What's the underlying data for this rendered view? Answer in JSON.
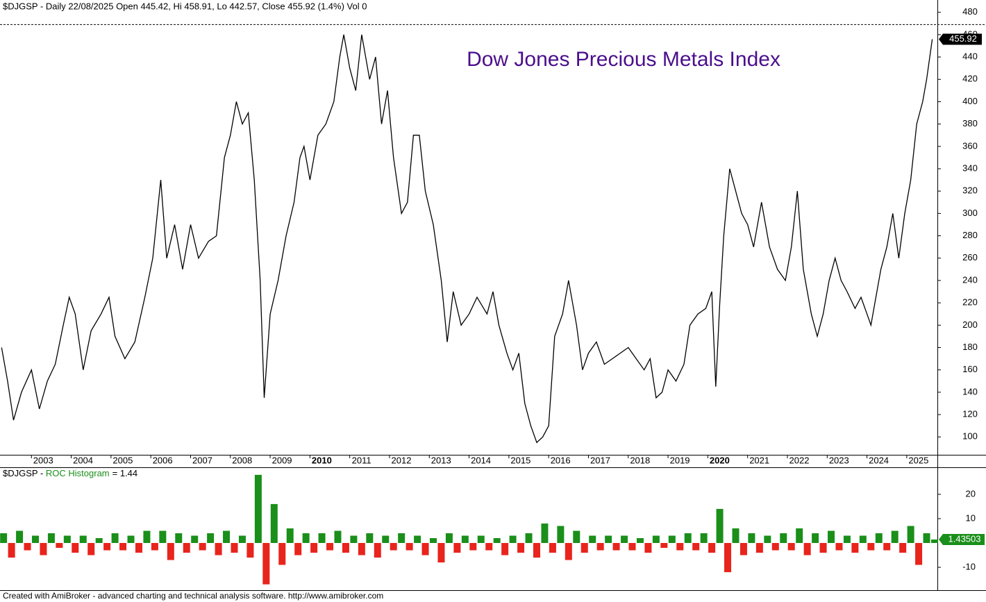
{
  "chart_data": [
    {
      "type": "line",
      "header": "$DJGSP - Daily 22/08/2025 Open 445.42, Hi 458.91, Lo 442.57, Close 455.92 (1.4%) Vol 0",
      "title": "Dow Jones Precious Metals Index",
      "title_color": "#4b0f8c",
      "color": "#000000",
      "x": [
        2002.25,
        2002.4,
        2002.55,
        2002.75,
        2003.0,
        2003.2,
        2003.4,
        2003.6,
        2003.8,
        2003.95,
        2004.1,
        2004.3,
        2004.5,
        2004.75,
        2004.95,
        2005.1,
        2005.35,
        2005.6,
        2005.85,
        2006.05,
        2006.25,
        2006.4,
        2006.6,
        2006.8,
        2007.0,
        2007.2,
        2007.45,
        2007.65,
        2007.85,
        2008.0,
        2008.15,
        2008.3,
        2008.45,
        2008.6,
        2008.75,
        2008.85,
        2009.0,
        2009.2,
        2009.4,
        2009.6,
        2009.75,
        2009.85,
        2010.0,
        2010.2,
        2010.4,
        2010.6,
        2010.75,
        2010.85,
        2011.0,
        2011.15,
        2011.3,
        2011.5,
        2011.65,
        2011.8,
        2011.95,
        2012.1,
        2012.3,
        2012.45,
        2012.6,
        2012.75,
        2012.9,
        2013.1,
        2013.3,
        2013.45,
        2013.6,
        2013.8,
        2014.0,
        2014.2,
        2014.45,
        2014.6,
        2014.75,
        2014.95,
        2015.1,
        2015.25,
        2015.4,
        2015.55,
        2015.7,
        2015.85,
        2016.0,
        2016.15,
        2016.35,
        2016.5,
        2016.7,
        2016.85,
        2017.0,
        2017.2,
        2017.4,
        2017.6,
        2017.8,
        2018.0,
        2018.2,
        2018.4,
        2018.55,
        2018.7,
        2018.85,
        2019.0,
        2019.2,
        2019.4,
        2019.55,
        2019.75,
        2019.95,
        2020.1,
        2020.2,
        2020.3,
        2020.4,
        2020.55,
        2020.7,
        2020.85,
        2021.0,
        2021.15,
        2021.35,
        2021.55,
        2021.75,
        2021.95,
        2022.1,
        2022.25,
        2022.4,
        2022.6,
        2022.75,
        2022.9,
        2023.05,
        2023.2,
        2023.35,
        2023.5,
        2023.7,
        2023.85,
        2024.0,
        2024.1,
        2024.2,
        2024.35,
        2024.5,
        2024.65,
        2024.8,
        2024.95,
        2025.1,
        2025.25,
        2025.4,
        2025.5,
        2025.64
      ],
      "values": [
        180,
        150,
        115,
        140,
        160,
        125,
        150,
        165,
        200,
        225,
        210,
        160,
        195,
        210,
        225,
        190,
        170,
        185,
        225,
        260,
        330,
        260,
        290,
        250,
        290,
        260,
        275,
        280,
        350,
        370,
        400,
        380,
        390,
        330,
        240,
        135,
        210,
        240,
        280,
        310,
        350,
        360,
        330,
        370,
        380,
        400,
        440,
        460,
        430,
        410,
        460,
        420,
        440,
        380,
        410,
        350,
        300,
        310,
        370,
        370,
        320,
        290,
        240,
        185,
        230,
        200,
        210,
        225,
        210,
        230,
        200,
        175,
        160,
        175,
        130,
        110,
        95,
        100,
        110,
        190,
        210,
        240,
        200,
        160,
        175,
        185,
        165,
        170,
        175,
        180,
        170,
        160,
        170,
        135,
        140,
        160,
        150,
        165,
        200,
        210,
        215,
        230,
        145,
        220,
        280,
        340,
        320,
        300,
        290,
        270,
        310,
        270,
        250,
        240,
        270,
        320,
        250,
        210,
        190,
        210,
        240,
        260,
        240,
        230,
        215,
        225,
        210,
        200,
        220,
        250,
        270,
        300,
        260,
        300,
        330,
        380,
        400,
        420,
        455.92
      ],
      "high_line": 469,
      "xlim": [
        2002.21,
        2025.77
      ],
      "xticks": [
        2003,
        2004,
        2005,
        2006,
        2007,
        2008,
        2009,
        2010,
        2011,
        2012,
        2013,
        2014,
        2015,
        2016,
        2017,
        2018,
        2019,
        2020,
        2021,
        2022,
        2023,
        2024,
        2025
      ],
      "bold_xticks": [
        2010,
        2020
      ],
      "ylim": [
        84,
        491
      ],
      "yticks": [
        100,
        120,
        140,
        160,
        180,
        200,
        220,
        240,
        260,
        280,
        300,
        320,
        340,
        360,
        380,
        400,
        420,
        440,
        460,
        480
      ]
    },
    {
      "type": "histogram",
      "header_prefix": "$DJGSP - ",
      "indicator_name": "ROC Histogram",
      "header_value": "= 1.44",
      "positive_color": "#1a8f1a",
      "negative_color": "#e8241c",
      "x": [
        2002.3,
        2002.5,
        2002.7,
        2002.9,
        2003.1,
        2003.3,
        2003.5,
        2003.7,
        2003.9,
        2004.1,
        2004.3,
        2004.5,
        2004.7,
        2004.9,
        2005.1,
        2005.3,
        2005.5,
        2005.7,
        2005.9,
        2006.1,
        2006.3,
        2006.5,
        2006.7,
        2006.9,
        2007.1,
        2007.3,
        2007.5,
        2007.7,
        2007.9,
        2008.1,
        2008.3,
        2008.5,
        2008.7,
        2008.9,
        2009.1,
        2009.3,
        2009.5,
        2009.7,
        2009.9,
        2010.1,
        2010.3,
        2010.5,
        2010.7,
        2010.9,
        2011.1,
        2011.3,
        2011.5,
        2011.7,
        2011.9,
        2012.1,
        2012.3,
        2012.5,
        2012.7,
        2012.9,
        2013.1,
        2013.3,
        2013.5,
        2013.7,
        2013.9,
        2014.1,
        2014.3,
        2014.5,
        2014.7,
        2014.9,
        2015.1,
        2015.3,
        2015.5,
        2015.7,
        2015.9,
        2016.1,
        2016.3,
        2016.5,
        2016.7,
        2016.9,
        2017.1,
        2017.3,
        2017.5,
        2017.7,
        2017.9,
        2018.1,
        2018.3,
        2018.5,
        2018.7,
        2018.9,
        2019.1,
        2019.3,
        2019.5,
        2019.7,
        2019.9,
        2020.1,
        2020.3,
        2020.5,
        2020.7,
        2020.9,
        2021.1,
        2021.3,
        2021.5,
        2021.7,
        2021.9,
        2022.1,
        2022.3,
        2022.5,
        2022.7,
        2022.9,
        2023.1,
        2023.3,
        2023.5,
        2023.7,
        2023.9,
        2024.1,
        2024.3,
        2024.5,
        2024.7,
        2024.9,
        2025.1,
        2025.3,
        2025.5,
        2025.7
      ],
      "values": [
        4,
        -6,
        5,
        -3,
        3,
        -5,
        4,
        -2,
        3,
        -4,
        3,
        -5,
        2,
        -3,
        4,
        -3,
        3,
        -4,
        5,
        -3,
        5,
        -7,
        4,
        -4,
        3,
        -3,
        4,
        -5,
        5,
        -4,
        3,
        -6,
        28,
        -17,
        16,
        -9,
        6,
        -5,
        4,
        -4,
        4,
        -3,
        5,
        -4,
        3,
        -5,
        4,
        -6,
        3,
        -3,
        4,
        -3,
        3,
        -5,
        2,
        -8,
        4,
        -4,
        3,
        -3,
        3,
        -3,
        2,
        -5,
        3,
        -4,
        4,
        -6,
        8,
        -4,
        7,
        -7,
        5,
        -4,
        3,
        -3,
        3,
        -3,
        3,
        -3,
        2,
        -4,
        3,
        -2,
        3,
        -3,
        4,
        -3,
        4,
        -4,
        14,
        -12,
        6,
        -5,
        4,
        -4,
        3,
        -3,
        4,
        -3,
        6,
        -5,
        4,
        -4,
        5,
        -3,
        3,
        -4,
        3,
        -3,
        4,
        -3,
        5,
        -4,
        7,
        -9,
        4,
        1.43503
      ],
      "xlim": [
        2002.21,
        2025.77
      ],
      "ylim": [
        -19.4,
        31.1
      ],
      "yticks": [
        -10,
        10,
        20
      ]
    }
  ],
  "footer": "Created with AmiBroker - advanced charting and technical analysis software. http://www.amibroker.com"
}
